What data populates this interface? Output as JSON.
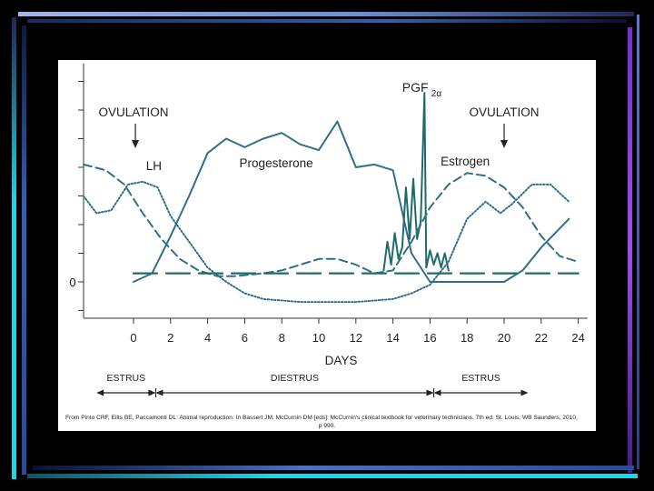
{
  "slide": {
    "credit_line1": "From Pinto CRF, Eilts BE, Paccamonti DL: Animal reproduction. In Bassert JM, McCurnin DM [eds]: McCurnin's clinical textbook for veterinary technicians, 7th ed. St. Louis, WB Saunders, 2010,",
    "credit_line2": "p 990.",
    "colors": {
      "background": "#000000",
      "panel": "#ffffff",
      "curve": "#2f6f87",
      "pgf": "#1f6b6b",
      "gridline": "#e6e6e6"
    }
  },
  "chart_data": {
    "type": "line",
    "title": "",
    "xlabel": "DAYS",
    "ylabel": "",
    "xlim": [
      -2.7,
      24.5
    ],
    "ylim": [
      -1.2,
      7.5
    ],
    "x_ticks": [
      "0",
      "2",
      "4",
      "6",
      "8",
      "10",
      "12",
      "14",
      "16",
      "18",
      "20",
      "22",
      "24"
    ],
    "y_tick_label": "0",
    "y_tick_values": [
      -1,
      0,
      1,
      2,
      3,
      4,
      5,
      6,
      7
    ],
    "grid": false,
    "annotations": {
      "ovulation_left": "OVULATION",
      "ovulation_right": "OVULATION",
      "lh": "LH",
      "progesterone": "Progesterone",
      "pgf": "PGF",
      "pgf_sub": "2α",
      "estrogen": "Estrogen"
    },
    "phases": [
      {
        "label": "ESTRUS",
        "start": -2.0,
        "end": 1.2
      },
      {
        "label": "DIESTRUS",
        "start": 1.2,
        "end": 16.2
      },
      {
        "label": "ESTRUS",
        "start": 16.2,
        "end": 21.3
      }
    ],
    "series": [
      {
        "name": "Progesterone",
        "style": "solid",
        "points": [
          [
            0,
            0
          ],
          [
            1,
            0.3
          ],
          [
            2,
            1.6
          ],
          [
            3,
            3
          ],
          [
            4,
            4.5
          ],
          [
            5,
            5
          ],
          [
            6,
            4.7
          ],
          [
            7,
            5
          ],
          [
            8,
            5.2
          ],
          [
            9,
            4.8
          ],
          [
            10,
            4.6
          ],
          [
            11,
            5.6
          ],
          [
            12,
            4
          ],
          [
            13,
            4.1
          ],
          [
            14,
            3.9
          ],
          [
            15,
            1
          ],
          [
            16,
            0
          ],
          [
            20,
            0
          ],
          [
            21,
            0.4
          ],
          [
            22,
            1.2
          ],
          [
            23.5,
            2.2
          ]
        ]
      },
      {
        "name": "PGF2α",
        "style": "solid",
        "points": [
          [
            13.5,
            0.4
          ],
          [
            13.7,
            1.4
          ],
          [
            13.9,
            0.6
          ],
          [
            14.1,
            1.7
          ],
          [
            14.3,
            0.8
          ],
          [
            14.5,
            1.2
          ],
          [
            14.7,
            3.3
          ],
          [
            14.9,
            1.5
          ],
          [
            15.1,
            3.6
          ],
          [
            15.3,
            1.5
          ],
          [
            15.5,
            2.1
          ],
          [
            15.7,
            6.6
          ],
          [
            15.8,
            0.5
          ],
          [
            16,
            1.1
          ],
          [
            16.2,
            0.6
          ],
          [
            16.4,
            1
          ],
          [
            16.6,
            0.5
          ],
          [
            16.8,
            1
          ],
          [
            17,
            0.4
          ]
        ]
      },
      {
        "name": "LH",
        "style": "dotted",
        "points": [
          [
            -2.7,
            3
          ],
          [
            -2,
            2.4
          ],
          [
            -1.2,
            2.5
          ],
          [
            -0.3,
            3.4
          ],
          [
            0.5,
            3.5
          ],
          [
            1.3,
            3.3
          ],
          [
            2,
            2.3
          ],
          [
            3,
            1.4
          ],
          [
            4,
            0.5
          ],
          [
            5,
            0
          ],
          [
            6,
            -0.4
          ],
          [
            7,
            -0.6
          ],
          [
            9,
            -0.7
          ],
          [
            12,
            -0.7
          ],
          [
            14,
            -0.6
          ],
          [
            15,
            -0.4
          ],
          [
            16,
            -0.1
          ],
          [
            17,
            0.7
          ],
          [
            18,
            2.2
          ],
          [
            19,
            2.8
          ],
          [
            19.8,
            2.4
          ],
          [
            20.4,
            2.7
          ],
          [
            21.5,
            3.4
          ],
          [
            22.5,
            3.4
          ],
          [
            23.5,
            2.8
          ]
        ]
      },
      {
        "name": "Estrogen",
        "style": "dashed",
        "points": [
          [
            -2.7,
            4.1
          ],
          [
            -1.5,
            3.9
          ],
          [
            -0.5,
            3.4
          ],
          [
            0.5,
            2.4
          ],
          [
            1.5,
            1.5
          ],
          [
            2.5,
            0.8
          ],
          [
            3.5,
            0.4
          ],
          [
            4.5,
            0.2
          ],
          [
            5.5,
            0.2
          ],
          [
            7,
            0.3
          ],
          [
            8,
            0.4
          ],
          [
            9,
            0.6
          ],
          [
            10,
            0.8
          ],
          [
            11,
            0.8
          ],
          [
            12,
            0.6
          ],
          [
            13,
            0.3
          ],
          [
            14,
            0.4
          ],
          [
            15,
            1.4
          ],
          [
            16,
            2.6
          ],
          [
            17,
            3.4
          ],
          [
            18,
            3.8
          ],
          [
            19,
            3.7
          ],
          [
            20,
            3.3
          ],
          [
            21,
            2.6
          ],
          [
            22,
            1.6
          ],
          [
            23,
            0.9
          ],
          [
            24,
            0.7
          ]
        ]
      },
      {
        "name": "Baseline",
        "style": "long-dash",
        "points": [
          [
            0,
            0.3
          ],
          [
            24,
            0.3
          ]
        ]
      }
    ]
  }
}
